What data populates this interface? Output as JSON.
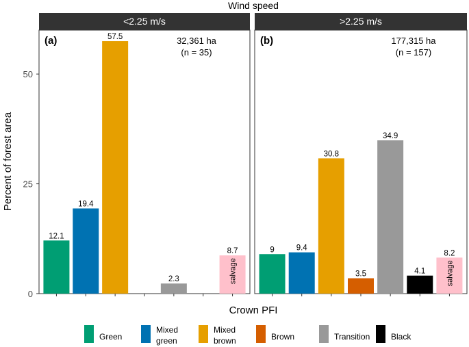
{
  "chart_data": {
    "type": "bar",
    "title": "Wind speed",
    "xlabel": "Crown PFI",
    "ylabel": "Percent of forest area",
    "ylim": [
      0,
      60
    ],
    "yticks": [
      0,
      25,
      50
    ],
    "grid": false,
    "legend": {
      "position": "bottom",
      "entries": [
        {
          "label": "Green",
          "color": "#009E73"
        },
        {
          "label": "Mixed\ngreen",
          "color": "#0072B2"
        },
        {
          "label": "Mixed\nbrown",
          "color": "#E69F00"
        },
        {
          "label": "Brown",
          "color": "#D55E00"
        },
        {
          "label": "Transition",
          "color": "#999999"
        },
        {
          "label": "Black",
          "color": "#000000"
        }
      ]
    },
    "categories": [
      "Green",
      "Mixed green",
      "Mixed brown",
      "Brown",
      "Transition",
      "Black",
      "salvage"
    ],
    "category_colors": [
      "#009E73",
      "#0072B2",
      "#E69F00",
      "#D55E00",
      "#999999",
      "#000000",
      "#FFC0CB"
    ],
    "panels": [
      {
        "strip": "<2.25 m/s",
        "letter": "(a)",
        "area_line1": "32,361 ha",
        "area_line2": "(n = 35)",
        "values": [
          12.1,
          19.4,
          57.5,
          null,
          2.3,
          null,
          8.7
        ],
        "labels": [
          "12.1",
          "19.4",
          "57.5",
          "",
          "2.3",
          "",
          "8.7"
        ]
      },
      {
        "strip": ">2.25 m/s",
        "letter": "(b)",
        "area_line1": "177,315 ha",
        "area_line2": "(n = 157)",
        "values": [
          9,
          9.4,
          30.8,
          3.5,
          34.9,
          4.1,
          8.2
        ],
        "labels": [
          "9",
          "9.4",
          "30.8",
          "3.5",
          "34.9",
          "4.1",
          "8.2"
        ]
      }
    ],
    "salvage_label": "salvage"
  }
}
